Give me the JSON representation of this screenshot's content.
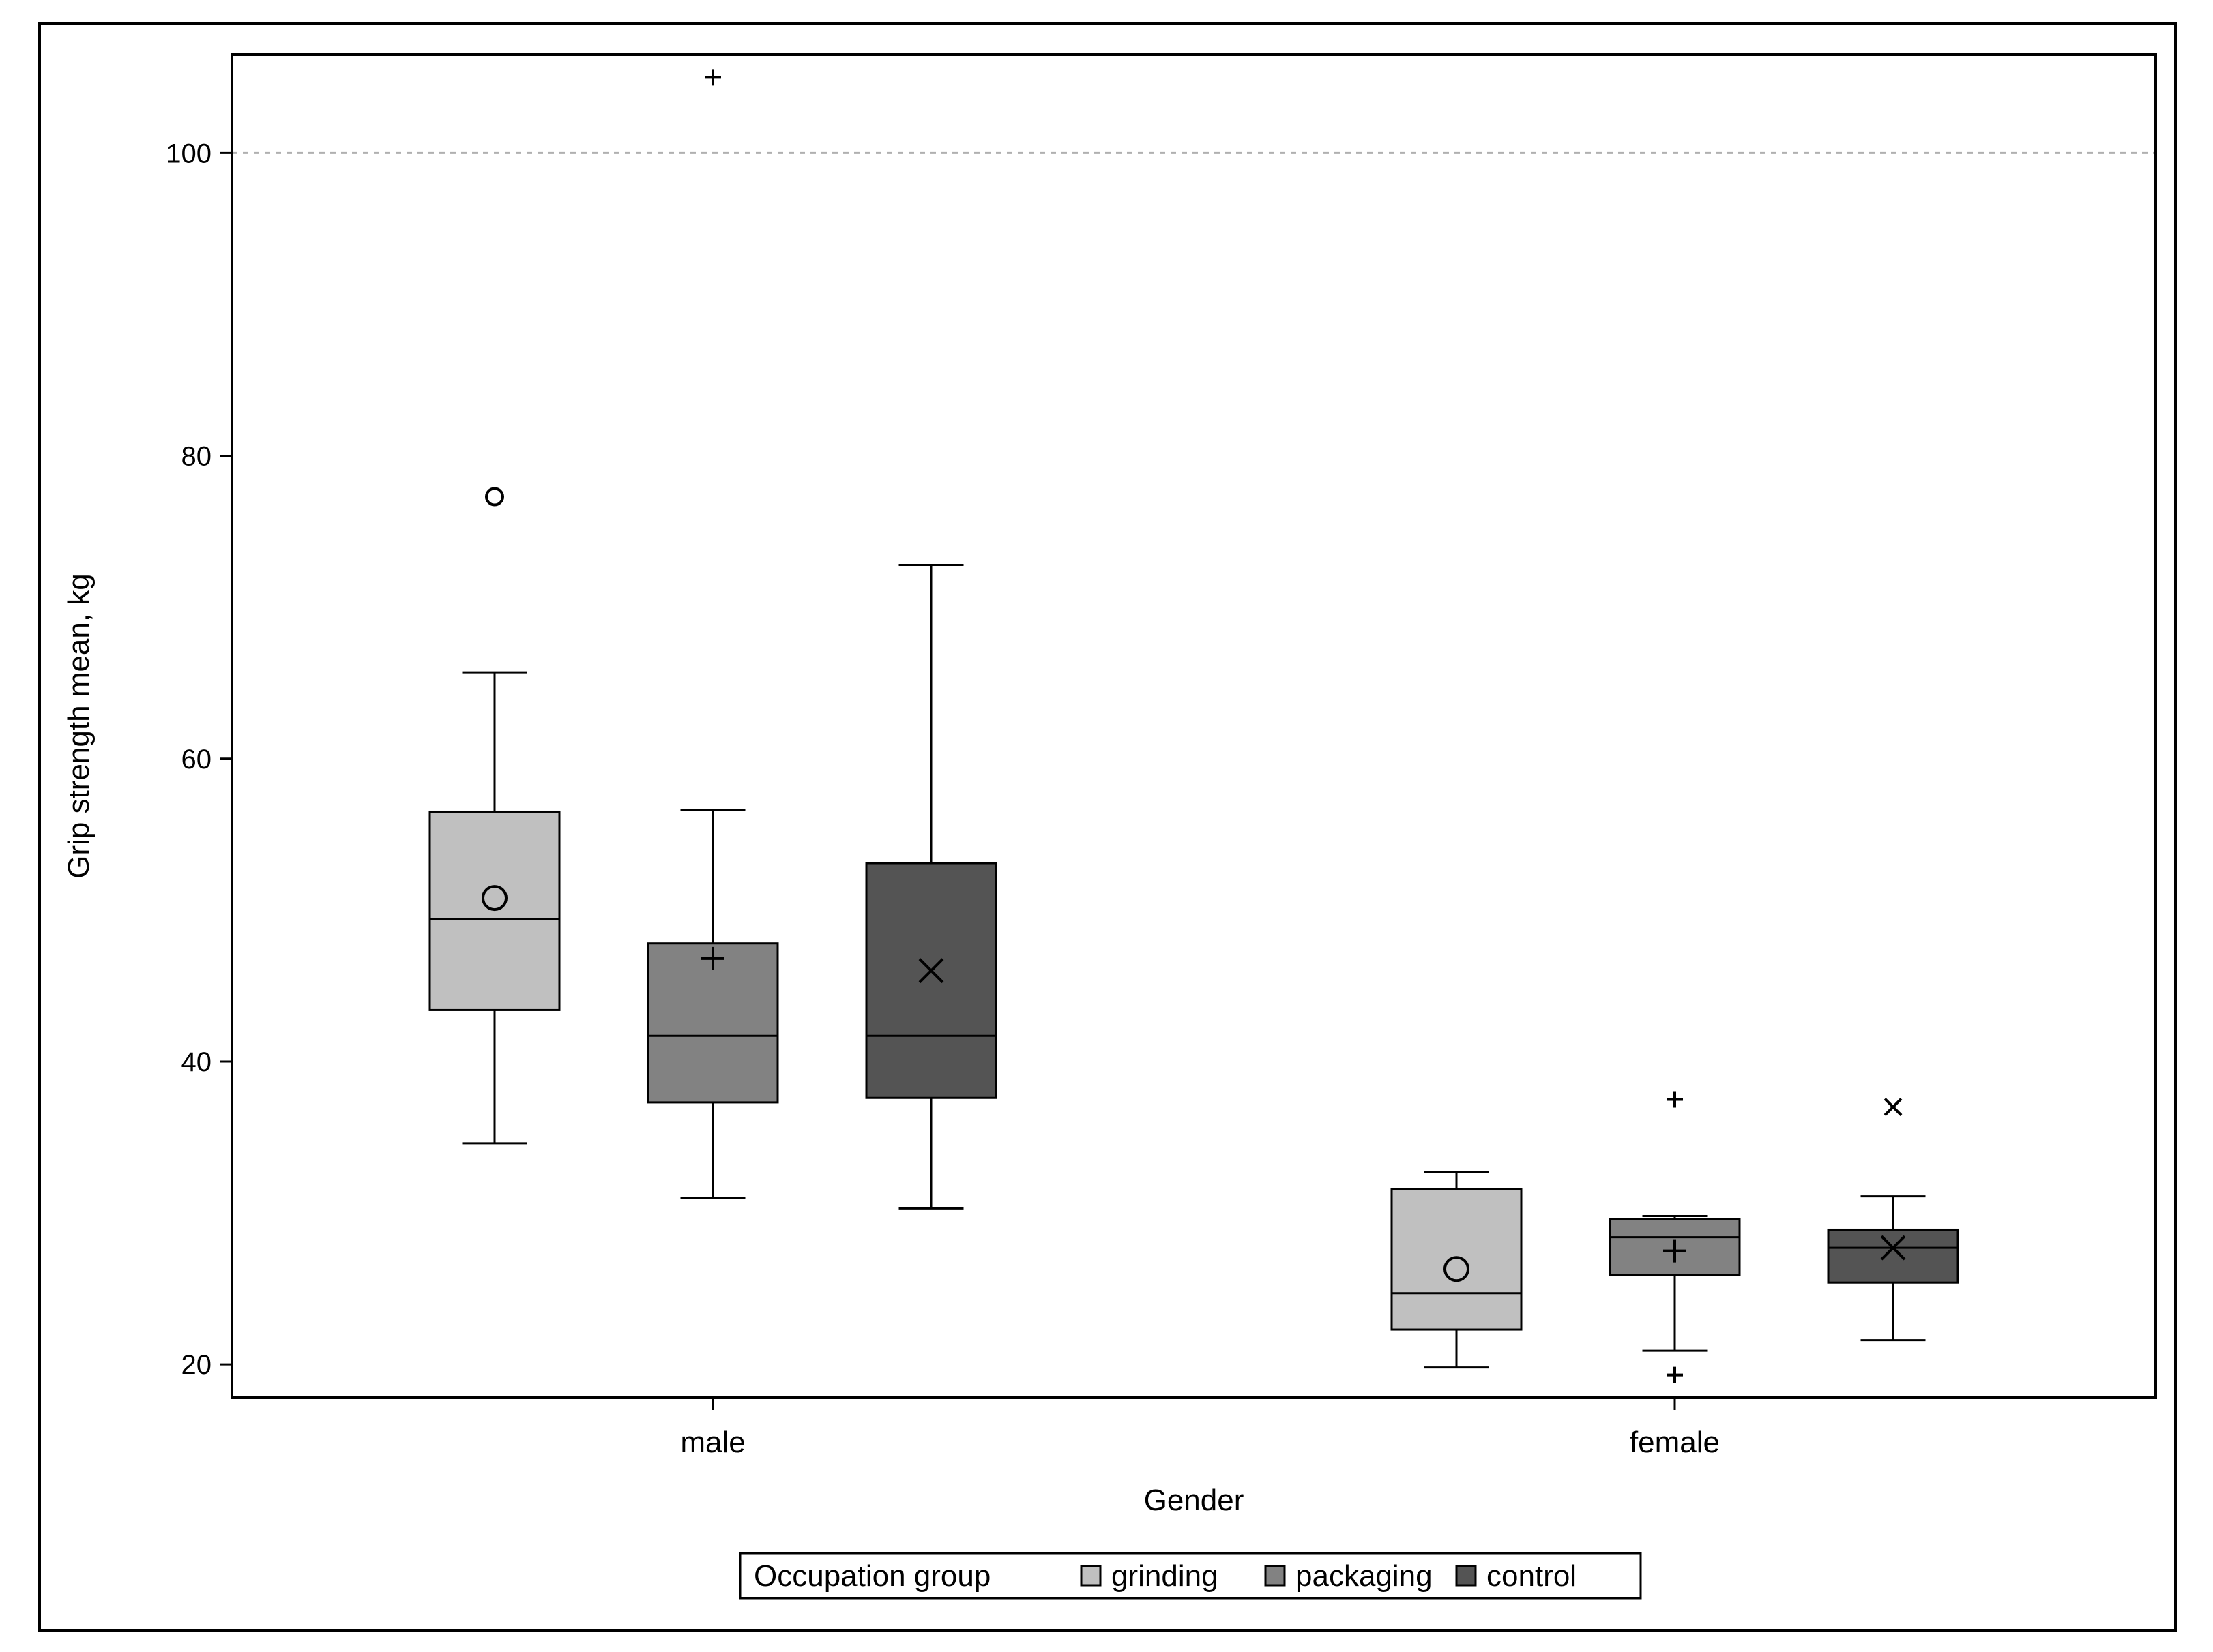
{
  "chart_data": {
    "type": "box",
    "title": "",
    "xlabel": "Gender",
    "ylabel": "Grip strength mean, kg",
    "ylim": [
      17.8,
      106.5
    ],
    "yticks": [
      20,
      40,
      60,
      80,
      100
    ],
    "reference_line": 100,
    "categories": [
      "male",
      "female"
    ],
    "legend": {
      "title": "Occupation group",
      "placement": "bottom"
    },
    "series": [
      {
        "name": "grinding",
        "color": "#c0c0c0",
        "mean_marker": "circle",
        "boxes": [
          {
            "category": "male",
            "whisker_low": 34.6,
            "q1": 43.4,
            "median": 49.4,
            "q3": 56.5,
            "whisker_high": 65.7,
            "mean": 50.8,
            "outliers": [
              77.3
            ]
          },
          {
            "category": "female",
            "whisker_low": 19.8,
            "q1": 22.3,
            "median": 24.7,
            "q3": 31.6,
            "whisker_high": 32.7,
            "mean": 26.3,
            "outliers": []
          }
        ]
      },
      {
        "name": "packaging",
        "color": "#828282",
        "mean_marker": "plus",
        "boxes": [
          {
            "category": "male",
            "whisker_low": 31.0,
            "q1": 37.3,
            "median": 41.7,
            "q3": 47.8,
            "whisker_high": 56.6,
            "mean": 46.8,
            "outliers": [
              105.0
            ]
          },
          {
            "category": "female",
            "whisker_low": 20.9,
            "q1": 25.9,
            "median": 28.4,
            "q3": 29.6,
            "whisker_high": 29.8,
            "mean": 27.5,
            "outliers": [
              37.5,
              19.3
            ]
          }
        ]
      },
      {
        "name": "control",
        "color": "#545454",
        "mean_marker": "x",
        "boxes": [
          {
            "category": "male",
            "whisker_low": 30.3,
            "q1": 37.6,
            "median": 41.7,
            "q3": 53.1,
            "whisker_high": 72.8,
            "mean": 46.0,
            "outliers": []
          },
          {
            "category": "female",
            "whisker_low": 21.6,
            "q1": 25.4,
            "median": 27.7,
            "q3": 28.9,
            "whisker_high": 31.1,
            "mean": 27.7,
            "outliers": [
              37.0
            ]
          }
        ]
      }
    ]
  }
}
